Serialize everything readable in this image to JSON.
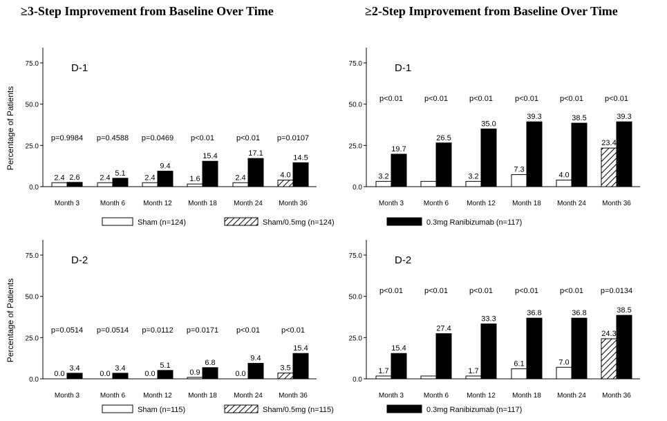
{
  "titles": {
    "left": "≥3-Step Improvement from Baseline Over Time",
    "right": "≥2-Step Improvement from Baseline Over Time"
  },
  "patterns": {
    "sham": "open",
    "sham_05": "hatched",
    "ranibizumab": "solid"
  },
  "colors": {
    "bar_fill": "#000000",
    "background": "#ffffff"
  },
  "chart_data": [
    {
      "type": "bar",
      "panel_label": "D-1",
      "ylabel": "Percentage of Patients",
      "ylim": [
        0,
        75
      ],
      "yticks": [
        "0.0",
        "25.0",
        "50.0",
        "75.0"
      ],
      "categories": [
        "Month 3",
        "Month 6",
        "Month 12",
        "Month 18",
        "Month 24",
        "Month 36"
      ],
      "p_values": [
        "p=0.9984",
        "p=0.4588",
        "p=0.0469",
        "p<0.01",
        "p<0.01",
        "p=0.0107"
      ],
      "series": [
        {
          "name": "Sham (n=124)",
          "values": [
            2.4,
            2.4,
            2.4,
            1.6,
            2.4,
            null
          ],
          "labels": [
            "2.4",
            "2.4",
            "2.4",
            "1.6",
            "2.4",
            ""
          ]
        },
        {
          "name": "Sham/0.5mg (n=124)",
          "values": [
            null,
            null,
            null,
            null,
            null,
            4.0
          ],
          "labels": [
            "",
            "",
            "",
            "",
            "",
            "4.0"
          ]
        },
        {
          "name": "0.3mg Ranibizumab (n=117)",
          "values": [
            2.6,
            5.1,
            9.4,
            15.4,
            17.1,
            14.5
          ],
          "labels": [
            "2.6",
            "5.1",
            "9.4",
            "15.4",
            "17.1",
            "14.5"
          ]
        }
      ],
      "legend": {
        "position": "bottom",
        "items": [
          "Sham (n=124)",
          "Sham/0.5mg (n=124)",
          "0.3mg Ranibizumab (n=117)"
        ]
      }
    },
    {
      "type": "bar",
      "panel_label": "D-1",
      "ylabel": "",
      "ylim": [
        0,
        75
      ],
      "yticks": [
        "0.0",
        "25.0",
        "50.0",
        "75.0"
      ],
      "categories": [
        "Month 3",
        "Month 6",
        "Month 12",
        "Month 18",
        "Month 24",
        "Month 36"
      ],
      "p_values": [
        "p<0.01",
        "p<0.01",
        "p<0.01",
        "p<0.01",
        "p<0.01",
        "p<0.01"
      ],
      "series": [
        {
          "name": "Sham (n=124)",
          "values": [
            3.2,
            3.2,
            3.2,
            7.3,
            4.0,
            null
          ],
          "labels": [
            "3.2",
            "",
            "3.2",
            "7.3",
            "4.0",
            ""
          ]
        },
        {
          "name": "Sham/0.5mg (n=124)",
          "values": [
            null,
            null,
            null,
            null,
            null,
            23.4
          ],
          "labels": [
            "",
            "",
            "",
            "",
            "",
            "23.4"
          ]
        },
        {
          "name": "0.3mg Ranibizumab (n=117)",
          "values": [
            19.7,
            26.5,
            35.0,
            39.3,
            38.5,
            39.3
          ],
          "labels": [
            "19.7",
            "26.5",
            "35.0",
            "39.3",
            "38.5",
            "39.3"
          ]
        }
      ]
    },
    {
      "type": "bar",
      "panel_label": "D-2",
      "ylabel": "Percentage of Patients",
      "ylim": [
        0,
        75
      ],
      "yticks": [
        "0.0",
        "25.0",
        "50.0",
        "75.0"
      ],
      "categories": [
        "Month 3",
        "Month 6",
        "Month 12",
        "Month 18",
        "Month 24",
        "Month 36"
      ],
      "p_values": [
        "p=0.0514",
        "p=0.0514",
        "p=0.0112",
        "p=0.0171",
        "p<0.01",
        "p<0.01"
      ],
      "series": [
        {
          "name": "Sham (n=115)",
          "values": [
            0.0,
            0.0,
            0.0,
            0.9,
            0.0,
            null
          ],
          "labels": [
            "0.0",
            "0.0",
            "0.0",
            "0.9",
            "0.0",
            ""
          ]
        },
        {
          "name": "Sham/0.5mg (n=115)",
          "values": [
            null,
            null,
            null,
            null,
            null,
            3.5
          ],
          "labels": [
            "",
            "",
            "",
            "",
            "",
            "3.5"
          ]
        },
        {
          "name": "0.3mg Ranibizumab (n=117)",
          "values": [
            3.4,
            3.4,
            5.1,
            6.8,
            9.4,
            15.4
          ],
          "labels": [
            "3.4",
            "3.4",
            "5.1",
            "6.8",
            "9.4",
            "15.4"
          ]
        }
      ],
      "legend": {
        "position": "bottom",
        "items": [
          "Sham (n=115)",
          "Sham/0.5mg (n=115)",
          "0.3mg Ranibizumab (n=117)"
        ]
      }
    },
    {
      "type": "bar",
      "panel_label": "D-2",
      "ylabel": "",
      "ylim": [
        0,
        75
      ],
      "yticks": [
        "0.0",
        "25.0",
        "50.0",
        "75.0"
      ],
      "categories": [
        "Month 3",
        "Month 6",
        "Month 12",
        "Month 18",
        "Month 24",
        "Month 36"
      ],
      "p_values": [
        "p<0.01",
        "p<0.01",
        "p<0.01",
        "p<0.01",
        "p<0.01",
        "p=0.0134"
      ],
      "series": [
        {
          "name": "Sham (n=115)",
          "values": [
            1.7,
            1.7,
            1.7,
            6.1,
            7.0,
            null
          ],
          "labels": [
            "1.7",
            "",
            "1.7",
            "6.1",
            "7.0",
            ""
          ]
        },
        {
          "name": "Sham/0.5mg (n=115)",
          "values": [
            null,
            null,
            null,
            null,
            null,
            24.3
          ],
          "labels": [
            "",
            "",
            "",
            "",
            "",
            "24.3"
          ]
        },
        {
          "name": "0.3mg Ranibizumab (n=117)",
          "values": [
            15.4,
            27.4,
            33.3,
            36.8,
            36.8,
            38.5
          ],
          "labels": [
            "15.4",
            "27.4",
            "33.3",
            "36.8",
            "36.8",
            "38.5"
          ]
        }
      ]
    }
  ]
}
